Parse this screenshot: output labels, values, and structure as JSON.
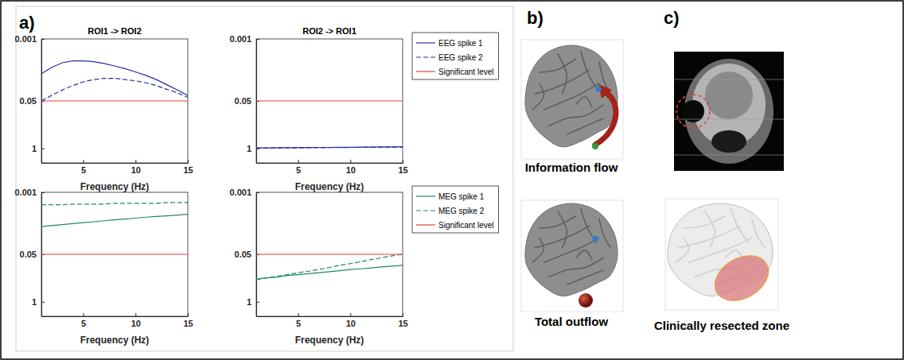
{
  "chart_data": [
    {
      "type": "line",
      "title": "ROI1 -> ROI2",
      "x_label": "Frequency (Hz)",
      "x": [
        1,
        2,
        3,
        4,
        5,
        6,
        7,
        8,
        9,
        10,
        11,
        12,
        13,
        14,
        15
      ],
      "xlim": [
        1,
        15
      ],
      "xticks": [
        5,
        10,
        15
      ],
      "ylim": [
        2.5,
        0.001
      ],
      "yticks": [
        0.001,
        0.05,
        1
      ],
      "log": "y",
      "series": [
        {
          "name": "EEG spike 1",
          "color": "#2b2ba6",
          "line_style": "solid",
          "values": [
            0.009,
            0.006,
            0.0045,
            0.004,
            0.004,
            0.0042,
            0.0047,
            0.0055,
            0.0065,
            0.008,
            0.01,
            0.013,
            0.018,
            0.025,
            0.035
          ]
        },
        {
          "name": "EEG spike 2",
          "color": "#2b2ba6",
          "line_style": "dashed",
          "values": [
            0.05,
            0.035,
            0.025,
            0.019,
            0.015,
            0.013,
            0.012,
            0.012,
            0.013,
            0.014,
            0.016,
            0.019,
            0.024,
            0.03,
            0.04
          ]
        },
        {
          "name": "Significant level",
          "color": "#e0443a",
          "line_style": "solid",
          "values": [
            0.05,
            0.05,
            0.05,
            0.05,
            0.05,
            0.05,
            0.05,
            0.05,
            0.05,
            0.05,
            0.05,
            0.05,
            0.05,
            0.05,
            0.05
          ]
        }
      ]
    },
    {
      "type": "line",
      "title": "ROI2 -> ROI1",
      "x_label": "Frequency (Hz)",
      "legend": "right",
      "x": [
        1,
        2,
        3,
        4,
        5,
        6,
        7,
        8,
        9,
        10,
        11,
        12,
        13,
        14,
        15
      ],
      "xlim": [
        1,
        15
      ],
      "xticks": [
        5,
        10,
        15
      ],
      "ylim": [
        2.5,
        0.001
      ],
      "yticks": [
        0.001,
        0.05,
        1
      ],
      "log": "y",
      "series": [
        {
          "name": "EEG spike 1",
          "color": "#2b2ba6",
          "line_style": "solid",
          "values": [
            0.97,
            0.97,
            0.96,
            0.96,
            0.95,
            0.95,
            0.94,
            0.94,
            0.93,
            0.93,
            0.92,
            0.92,
            0.91,
            0.91,
            0.9
          ]
        },
        {
          "name": "EEG spike 2",
          "color": "#2b2ba6",
          "line_style": "dashed",
          "values": [
            0.98,
            0.98,
            0.97,
            0.97,
            0.97,
            0.96,
            0.96,
            0.95,
            0.95,
            0.94,
            0.94,
            0.93,
            0.93,
            0.92,
            0.92
          ]
        },
        {
          "name": "Significant level",
          "color": "#e0443a",
          "line_style": "solid",
          "values": [
            0.05,
            0.05,
            0.05,
            0.05,
            0.05,
            0.05,
            0.05,
            0.05,
            0.05,
            0.05,
            0.05,
            0.05,
            0.05,
            0.05,
            0.05
          ]
        }
      ]
    },
    {
      "type": "line",
      "x_label": "Frequency (Hz)",
      "x": [
        1,
        2,
        3,
        4,
        5,
        6,
        7,
        8,
        9,
        10,
        11,
        12,
        13,
        14,
        15
      ],
      "xlim": [
        1,
        15
      ],
      "xticks": [
        5,
        10,
        15
      ],
      "ylim": [
        2.5,
        0.001
      ],
      "yticks": [
        0.001,
        0.05,
        1
      ],
      "log": "y",
      "series": [
        {
          "name": "MEG spike 1",
          "color": "#1f8a5e",
          "line_style": "solid",
          "values": [
            0.0087,
            0.0082,
            0.0077,
            0.0072,
            0.0068,
            0.0064,
            0.006,
            0.0057,
            0.0054,
            0.0051,
            0.0048,
            0.0046,
            0.0044,
            0.0042,
            0.004
          ]
        },
        {
          "name": "MEG spike 2",
          "color": "#1f8a5e",
          "line_style": "dashed",
          "values": [
            0.0022,
            0.0022,
            0.0022,
            0.0021,
            0.0021,
            0.0021,
            0.0021,
            0.002,
            0.002,
            0.002,
            0.002,
            0.002,
            0.0019,
            0.0019,
            0.0019
          ]
        },
        {
          "name": "Significant level",
          "color": "#e0443a",
          "line_style": "solid",
          "values": [
            0.05,
            0.05,
            0.05,
            0.05,
            0.05,
            0.05,
            0.05,
            0.05,
            0.05,
            0.05,
            0.05,
            0.05,
            0.05,
            0.05,
            0.05
          ]
        }
      ]
    },
    {
      "type": "line",
      "x_label": "Frequency (Hz)",
      "legend": "right",
      "x": [
        1,
        2,
        3,
        4,
        5,
        6,
        7,
        8,
        9,
        10,
        11,
        12,
        13,
        14,
        15
      ],
      "xlim": [
        1,
        15
      ],
      "xticks": [
        5,
        10,
        15
      ],
      "ylim": [
        2.5,
        0.001
      ],
      "yticks": [
        0.001,
        0.05,
        1
      ],
      "log": "y",
      "series": [
        {
          "name": "MEG spike 1",
          "color": "#1f8a5e",
          "line_style": "solid",
          "values": [
            0.24,
            0.22,
            0.21,
            0.19,
            0.18,
            0.17,
            0.16,
            0.15,
            0.14,
            0.13,
            0.125,
            0.118,
            0.111,
            0.105,
            0.1
          ]
        },
        {
          "name": "MEG spike 2",
          "color": "#1f8a5e",
          "line_style": "dashed",
          "values": [
            0.25,
            0.22,
            0.2,
            0.18,
            0.16,
            0.145,
            0.13,
            0.115,
            0.1,
            0.09,
            0.08,
            0.07,
            0.062,
            0.055,
            0.05
          ]
        },
        {
          "name": "Significant level",
          "color": "#e0443a",
          "line_style": "solid",
          "values": [
            0.05,
            0.05,
            0.05,
            0.05,
            0.05,
            0.05,
            0.05,
            0.05,
            0.05,
            0.05,
            0.05,
            0.05,
            0.05,
            0.05,
            0.05
          ]
        }
      ]
    }
  ],
  "figure": {
    "panels": [
      {
        "label": "a)"
      },
      {
        "label": "b)",
        "captions": [
          "Information flow",
          "Total outflow"
        ]
      },
      {
        "label": "c)",
        "captions": [
          "Clinically resected zone"
        ]
      }
    ]
  }
}
